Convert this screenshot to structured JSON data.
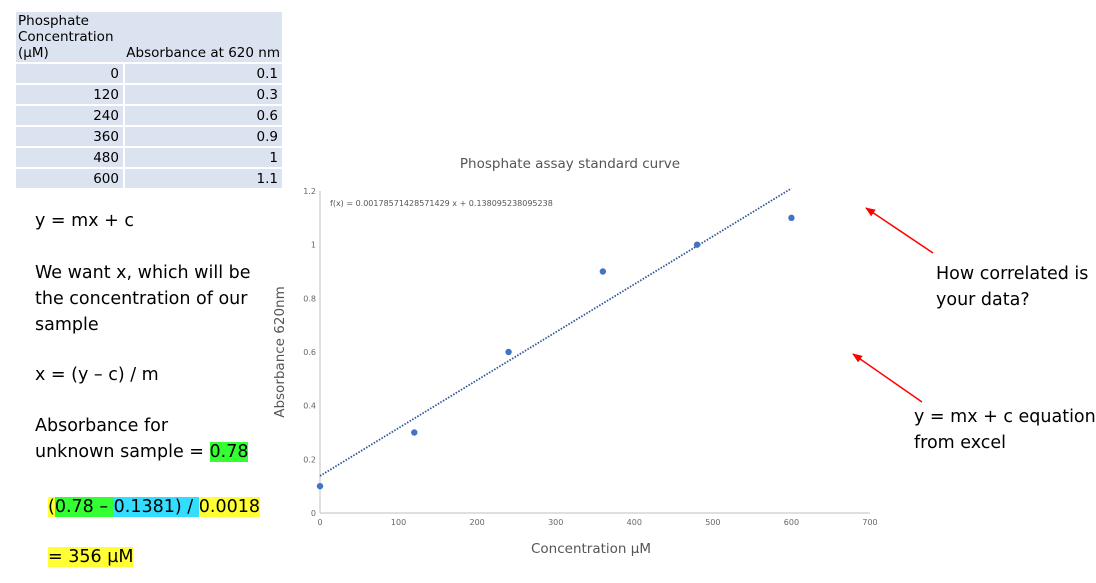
{
  "table": {
    "header_conc": "Phosphate\nConcentration\n(µM)",
    "header_abs": "Absorbance at 620 nm",
    "rows": [
      {
        "conc": "0",
        "abs": "0.1"
      },
      {
        "conc": "120",
        "abs": "0.3"
      },
      {
        "conc": "240",
        "abs": "0.6"
      },
      {
        "conc": "360",
        "abs": "0.9"
      },
      {
        "conc": "480",
        "abs": "1"
      },
      {
        "conc": "600",
        "abs": "1.1"
      }
    ]
  },
  "notes": {
    "eq_general": "y = mx + c",
    "want_line1": "We want x, which will be",
    "want_line2": "the concentration of our",
    "want_line3": "sample",
    "rearranged": "x = (y – c) / m",
    "absorb_line1": "Absorbance for",
    "absorb_line2": "unknown sample = ",
    "absorb_value": "0.78",
    "calc_open": "(",
    "calc_y": "0.78 – ",
    "calc_c": "0.1381) / ",
    "calc_m": "0.0018",
    "result": "= 356 µM"
  },
  "chart_data": {
    "type": "scatter",
    "title": "Phosphate assay standard curve",
    "xlabel": "Concentration µM",
    "ylabel": "Absorbance 620nm",
    "x": [
      0,
      120,
      240,
      360,
      480,
      600
    ],
    "y": [
      0.1,
      0.3,
      0.6,
      0.9,
      1.0,
      1.1
    ],
    "xlim": [
      0,
      700
    ],
    "ylim": [
      0,
      1.2
    ],
    "xticks": [
      "0",
      "100",
      "200",
      "300",
      "400",
      "500",
      "600",
      "700"
    ],
    "yticks": [
      "0",
      "0.2",
      "0.4",
      "0.6",
      "0.8",
      "1",
      "1.2"
    ],
    "trendline": {
      "slope": 0.00178571428571429,
      "intercept": 0.138095238095238
    },
    "equation_label": "f(x) = 0.00178571428571429 x + 0.138095238095238",
    "point_color": "#4472c4",
    "trend_color": "#2f5597"
  },
  "annotations": {
    "correlated_line1": "How correlated is",
    "correlated_line2": "your data?",
    "equation_line1": "y = mx + c equation",
    "equation_line2": "from excel",
    "arrow_color": "#ff0000"
  }
}
